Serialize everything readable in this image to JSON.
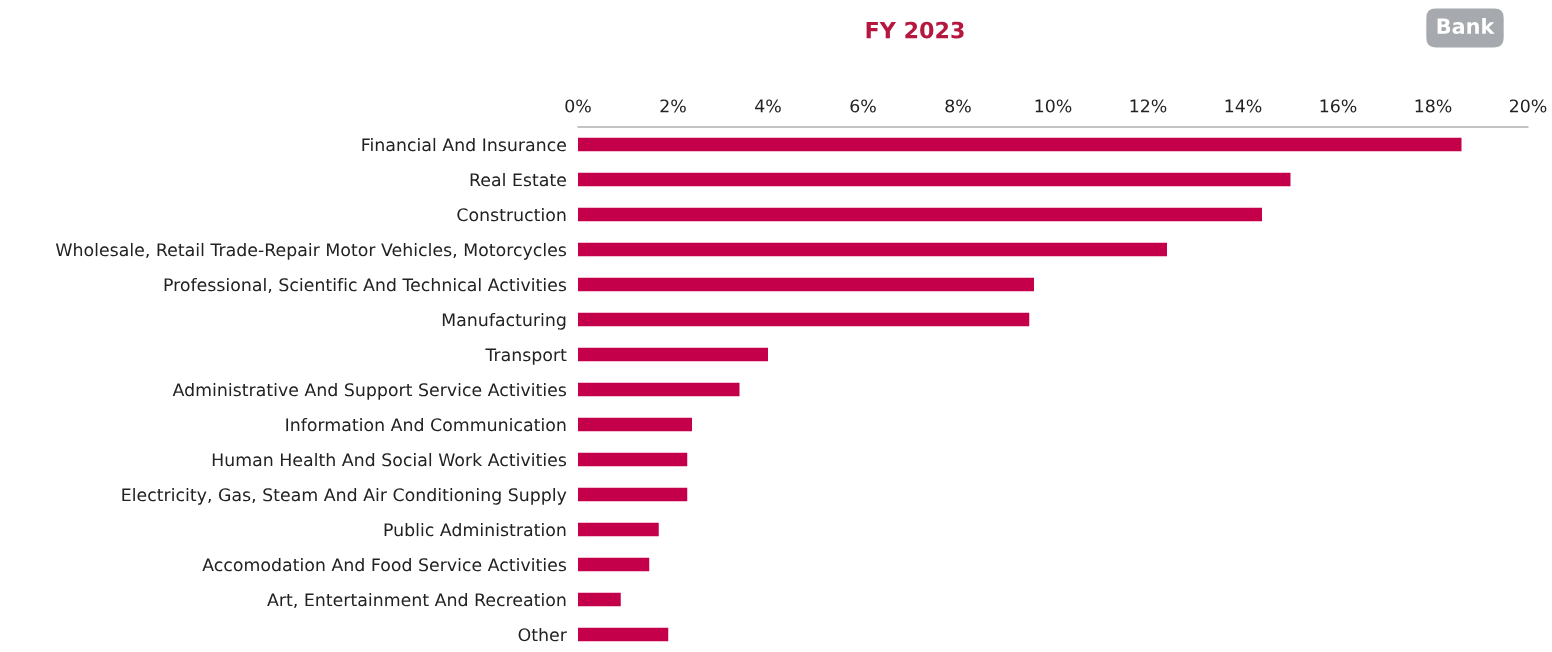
{
  "chart_data": {
    "type": "bar",
    "orientation": "horizontal",
    "title": "FY 2023",
    "categories": [
      "Financial And Insurance",
      "Real Estate",
      "Construction",
      "Wholesale, Retail Trade-Repair Motor Vehicles, Motorcycles",
      "Professional, Scientific And Technical Activities",
      "Manufacturing",
      "Transport",
      "Administrative And Support Service Activities",
      "Information And Communication",
      "Human Health And Social Work Activities",
      "Electricity, Gas, Steam And Air Conditioning Supply",
      "Public Administration",
      "Accomodation And Food Service Activities",
      "Art, Entertainment And Recreation",
      "Other"
    ],
    "values": [
      18.6,
      15.0,
      14.4,
      12.4,
      9.6,
      9.5,
      4.0,
      3.4,
      2.4,
      2.3,
      2.3,
      1.7,
      1.5,
      0.9,
      1.9
    ],
    "color": "#c5004a",
    "xlim": [
      0,
      20
    ],
    "xticks": [
      {
        "value": 0,
        "label": "0%"
      },
      {
        "value": 2,
        "label": "2%"
      },
      {
        "value": 4,
        "label": "4%"
      },
      {
        "value": 6,
        "label": "6%"
      },
      {
        "value": 8,
        "label": "8%"
      },
      {
        "value": 10,
        "label": "10%"
      },
      {
        "value": 12,
        "label": "12%"
      },
      {
        "value": 14,
        "label": "14%"
      },
      {
        "value": 16,
        "label": "16%"
      },
      {
        "value": 18,
        "label": "18%"
      },
      {
        "value": 20,
        "label": "20%"
      }
    ],
    "annotations": [
      "Bank"
    ],
    "grid": false,
    "legend": false
  }
}
